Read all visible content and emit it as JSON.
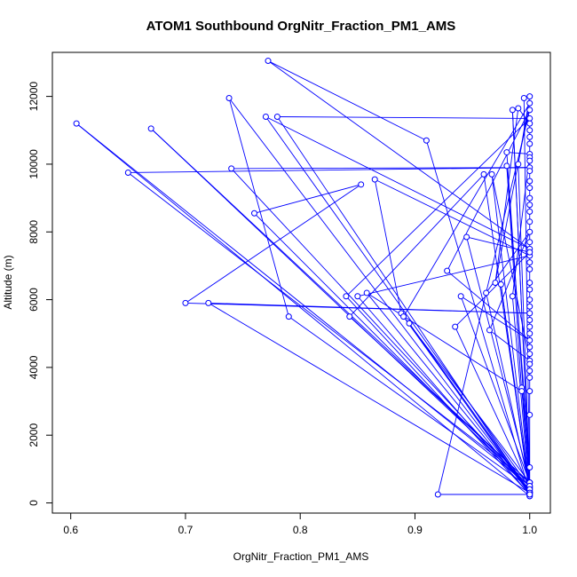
{
  "chart_data": {
    "type": "line",
    "title": "ATOM1 Southbound OrgNitr_Fraction_PM1_AMS",
    "xlabel": "OrgNitr_Fraction_PM1_AMS",
    "ylabel": "Altitude (m)",
    "xlim": [
      0.584,
      1.018
    ],
    "ylim": [
      -300,
      13300
    ],
    "x_ticks": [
      0.6,
      0.7,
      0.8,
      0.9,
      1.0
    ],
    "x_tick_labels": [
      "0.6",
      "0.7",
      "0.8",
      "0.9",
      "1.0"
    ],
    "y_ticks": [
      0,
      2000,
      4000,
      6000,
      8000,
      10000,
      12000
    ],
    "y_tick_labels": [
      "0",
      "2000",
      "4000",
      "6000",
      "8000",
      "10000",
      "12000"
    ],
    "grid": false,
    "legend": "none",
    "series_color": "#0000ff",
    "marker": "open-circle",
    "series": [
      {
        "points": [
          [
            1.0,
            200
          ],
          [
            0.605,
            11200
          ],
          [
            1.0,
            500
          ],
          [
            0.67,
            11050
          ],
          [
            1.0,
            600
          ],
          [
            0.65,
            9750
          ],
          [
            1.0,
            9900
          ],
          [
            0.74,
            9870
          ],
          [
            1.0,
            400
          ],
          [
            0.76,
            8550
          ],
          [
            0.853,
            9400
          ],
          [
            0.7,
            5900
          ],
          [
            1.0,
            5600
          ],
          [
            0.72,
            5900
          ],
          [
            1.0,
            300
          ],
          [
            0.738,
            11950
          ],
          [
            0.79,
            5500
          ],
          [
            1.0,
            450
          ],
          [
            0.77,
            11400
          ],
          [
            1.0,
            7500
          ],
          [
            0.772,
            13050
          ],
          [
            0.91,
            10700
          ],
          [
            1.0,
            300
          ],
          [
            0.78,
            11400
          ],
          [
            1.0,
            11350
          ],
          [
            0.84,
            6100
          ],
          [
            1.0,
            250
          ],
          [
            0.85,
            6100
          ],
          [
            1.0,
            7300
          ],
          [
            0.865,
            9550
          ],
          [
            0.888,
            5600
          ],
          [
            1.0,
            600
          ],
          [
            0.843,
            5500
          ],
          [
            0.96,
            9700
          ],
          [
            1.0,
            350
          ],
          [
            0.895,
            5300
          ],
          [
            1.0,
            250
          ],
          [
            0.92,
            250
          ],
          [
            1.0,
            11600
          ],
          [
            0.928,
            6850
          ],
          [
            1.0,
            4800
          ],
          [
            0.94,
            6100
          ],
          [
            1.0,
            600
          ],
          [
            0.945,
            7850
          ],
          [
            1.0,
            7400
          ],
          [
            0.935,
            5200
          ],
          [
            1.0,
            450
          ],
          [
            0.962,
            6200
          ],
          [
            1.0,
            8000
          ],
          [
            0.965,
            5100
          ],
          [
            1.0,
            4200
          ],
          [
            0.967,
            9700
          ],
          [
            1.0,
            300
          ],
          [
            0.975,
            6450
          ],
          [
            1.0,
            200
          ],
          [
            0.985,
            6100
          ],
          [
            1.0,
            10300
          ],
          [
            0.98,
            10350
          ],
          [
            1.0,
            500
          ],
          [
            0.985,
            11600
          ],
          [
            1.0,
            500
          ],
          [
            0.99,
            10000
          ],
          [
            1.0,
            12000
          ],
          [
            0.995,
            11950
          ],
          [
            1.0,
            400
          ],
          [
            0.993,
            3400
          ],
          [
            1.0,
            1050
          ],
          [
            0.98,
            9950
          ],
          [
            0.993,
            3300
          ],
          [
            0.858,
            6200
          ],
          [
            1.0,
            300
          ],
          [
            0.89,
            5500
          ],
          [
            1.0,
            11800
          ],
          [
            0.97,
            6500
          ],
          [
            0.99,
            11650
          ],
          [
            1.0,
            11200
          ],
          [
            1.0,
            11000
          ],
          [
            1.0,
            10800
          ],
          [
            1.0,
            10600
          ],
          [
            1.0,
            10200
          ],
          [
            1.0,
            10100
          ],
          [
            1.0,
            9800
          ],
          [
            1.0,
            9500
          ],
          [
            1.0,
            9300
          ],
          [
            1.0,
            9000
          ],
          [
            1.0,
            8800
          ],
          [
            1.0,
            8600
          ],
          [
            1.0,
            8300
          ],
          [
            1.0,
            7700
          ],
          [
            1.0,
            7100
          ],
          [
            1.0,
            6900
          ],
          [
            1.0,
            6500
          ],
          [
            1.0,
            6300
          ],
          [
            1.0,
            6000
          ],
          [
            1.0,
            5800
          ],
          [
            1.0,
            5400
          ],
          [
            1.0,
            5200
          ],
          [
            1.0,
            5000
          ],
          [
            1.0,
            4600
          ],
          [
            1.0,
            4400
          ],
          [
            1.0,
            4100
          ],
          [
            1.0,
            3900
          ],
          [
            1.0,
            3700
          ],
          [
            1.0,
            3300
          ],
          [
            1.0,
            2600
          ],
          [
            1.0,
            250
          ]
        ]
      }
    ]
  }
}
